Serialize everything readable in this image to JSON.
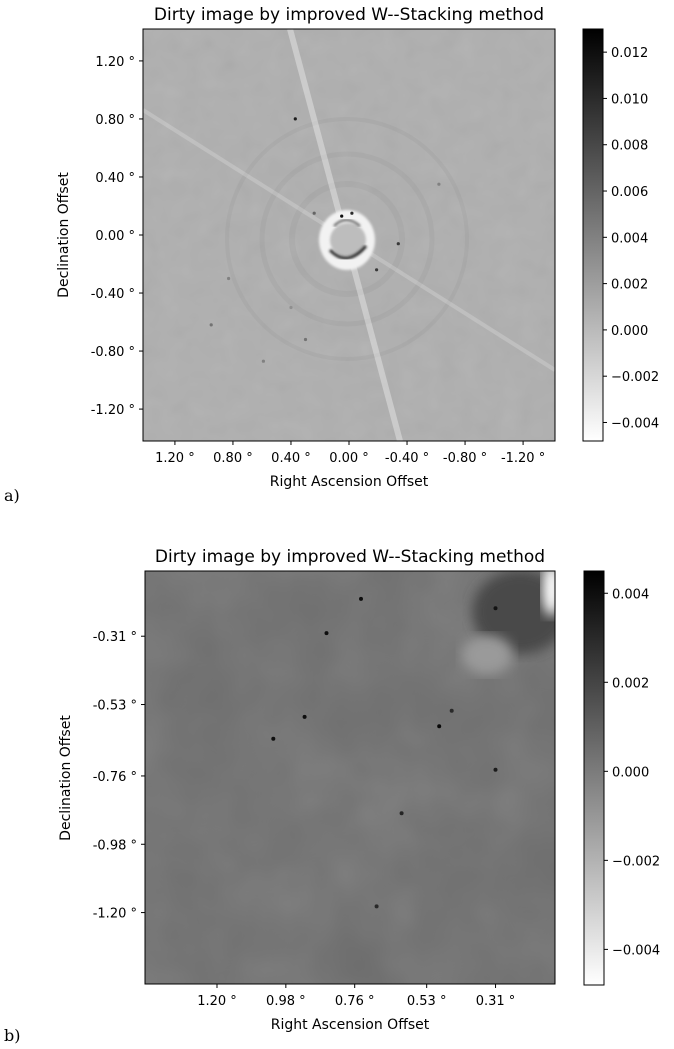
{
  "chart_data": [
    {
      "type": "heatmap",
      "panel_label": "a)",
      "title": "Dirty image by improved W--Stacking method",
      "xlabel": "Right Ascension Offset",
      "ylabel": "Declination Offset",
      "xticks": [
        "1.20$^\\circ$",
        "0.80$^\\circ$",
        "0.40$^\\circ$",
        "0.00$^\\circ$",
        "-0.40$^\\circ$",
        "-0.80$^\\circ$",
        "-1.20$^\\circ$"
      ],
      "xtick_labels": [
        "1.20 °",
        "0.80 °",
        "0.40 °",
        "0.00 °",
        "-0.40 °",
        "-0.80 °",
        "-1.20 °"
      ],
      "xtick_values": [
        1.2,
        0.8,
        0.4,
        0.0,
        -0.4,
        -0.8,
        -1.2
      ],
      "ytick_labels": [
        "1.20 °",
        "0.80 °",
        "0.40 °",
        "0.00 °",
        "-0.40 °",
        "-0.80 °",
        "-1.20 °"
      ],
      "ytick_values": [
        1.2,
        0.8,
        0.4,
        0.0,
        -0.4,
        -0.8,
        -1.2
      ],
      "xlim": [
        1.42,
        -1.42
      ],
      "ylim": [
        -1.42,
        1.42
      ],
      "colorbar": {
        "tick_labels": [
          "0.012",
          "0.010",
          "0.008",
          "0.006",
          "0.004",
          "0.002",
          "0.000",
          "−0.002",
          "−0.004"
        ],
        "tick_values": [
          0.012,
          0.01,
          0.008,
          0.006,
          0.004,
          0.002,
          0.0,
          -0.002,
          -0.004
        ],
        "range": [
          -0.0048,
          0.013
        ],
        "colormap": "gray_r"
      },
      "background_value": 0.0008,
      "sources": [
        {
          "x": 0.37,
          "y": 0.8,
          "v": 0.011
        },
        {
          "x": 0.05,
          "y": 0.13,
          "v": 0.012
        },
        {
          "x": -0.02,
          "y": 0.15,
          "v": 0.01
        },
        {
          "x": -0.34,
          "y": -0.06,
          "v": 0.009
        },
        {
          "x": -0.19,
          "y": -0.24,
          "v": 0.009
        },
        {
          "x": 0.24,
          "y": 0.15,
          "v": 0.006
        },
        {
          "x": -0.62,
          "y": 0.35,
          "v": 0.004
        },
        {
          "x": 0.83,
          "y": -0.3,
          "v": 0.004
        },
        {
          "x": 0.95,
          "y": -0.62,
          "v": 0.005
        },
        {
          "x": 0.3,
          "y": -0.72,
          "v": 0.005
        },
        {
          "x": 0.59,
          "y": -0.87,
          "v": 0.004
        },
        {
          "x": 0.4,
          "y": -0.5,
          "v": 0.003
        }
      ]
    },
    {
      "type": "heatmap",
      "panel_label": "b)",
      "title": "Dirty image by improved W--Stacking method",
      "xlabel": "Right Ascension Offset",
      "ylabel": "Declination Offset",
      "xtick_labels": [
        "1.20 °",
        "0.98 °",
        "0.76 °",
        "0.53 °",
        "0.31 °"
      ],
      "xtick_values": [
        1.2,
        0.98,
        0.76,
        0.53,
        0.31
      ],
      "ytick_labels": [
        "-0.31 °",
        "-0.53 °",
        "-0.76 °",
        "-0.98 °",
        "-1.20 °"
      ],
      "ytick_values": [
        -0.31,
        -0.53,
        -0.76,
        -0.98,
        -1.2
      ],
      "xlim": [
        1.43,
        0.12
      ],
      "ylim": [
        -1.43,
        -0.1
      ],
      "colorbar": {
        "tick_labels": [
          "0.004",
          "0.002",
          "0.000",
          "−0.002",
          "−0.004"
        ],
        "tick_values": [
          0.004,
          0.002,
          0.0,
          -0.002,
          -0.004
        ],
        "range": [
          -0.0048,
          0.0045
        ],
        "colormap": "gray_r"
      },
      "background_value": 0.0005,
      "sources": [
        {
          "x": 0.74,
          "y": -0.19,
          "v": 0.004
        },
        {
          "x": 0.85,
          "y": -0.3,
          "v": 0.004
        },
        {
          "x": 0.92,
          "y": -0.57,
          "v": 0.004
        },
        {
          "x": 1.02,
          "y": -0.64,
          "v": 0.004
        },
        {
          "x": 0.49,
          "y": -0.6,
          "v": 0.0042
        },
        {
          "x": 0.45,
          "y": -0.55,
          "v": 0.003
        },
        {
          "x": 0.31,
          "y": -0.74,
          "v": 0.0035
        },
        {
          "x": 0.31,
          "y": -0.22,
          "v": 0.0038
        },
        {
          "x": 0.61,
          "y": -0.88,
          "v": 0.0032
        },
        {
          "x": 0.69,
          "y": -1.18,
          "v": 0.003
        }
      ]
    }
  ]
}
